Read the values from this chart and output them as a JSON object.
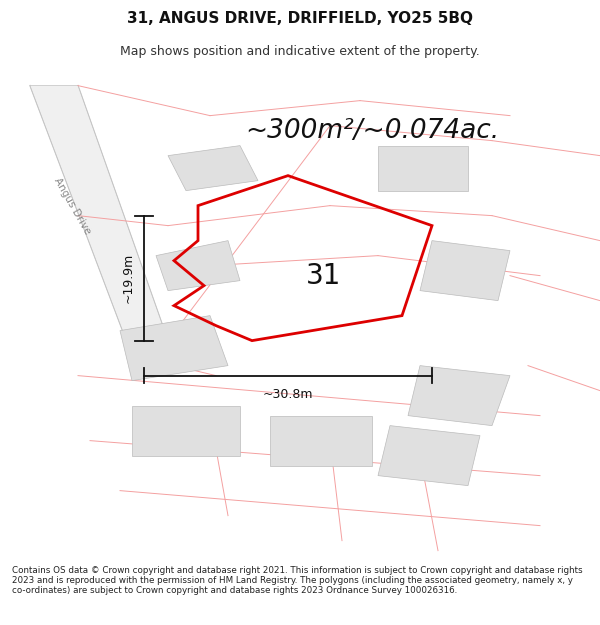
{
  "title": "31, ANGUS DRIVE, DRIFFIELD, YO25 5BQ",
  "subtitle": "Map shows position and indicative extent of the property.",
  "area_text": "~300m²/~0.074ac.",
  "dim_width": "~30.8m",
  "dim_height": "~19.9m",
  "label": "31",
  "footer": "Contains OS data © Crown copyright and database right 2021. This information is subject to Crown copyright and database rights 2023 and is reproduced with the permission of HM Land Registry. The polygons (including the associated geometry, namely x, y co-ordinates) are subject to Crown copyright and database rights 2023 Ordnance Survey 100026316.",
  "bg_color": "#ffffff",
  "map_bg": "#ffffff",
  "plot_color": "#dd0000",
  "building_fill": "#e0e0e0",
  "parcel_edge": "#f4a0a0",
  "road_label": "Angus Drive",
  "title_fontsize": 11,
  "subtitle_fontsize": 9,
  "area_fontsize": 19,
  "label_fontsize": 20,
  "footer_fontsize": 6.3,
  "dim_fontsize": 9
}
